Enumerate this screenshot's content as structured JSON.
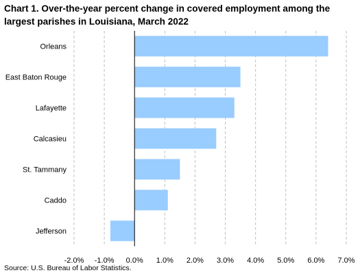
{
  "title": "Chart 1. Over-the-year percent change in covered employment among the largest parishes in Louisiana, March 2022",
  "source": "Source: U.S. Bureau of Labor Statistics.",
  "colors": {
    "bar": "#99ccff",
    "grid": "#bfbfbf",
    "axis": "#000000"
  },
  "chart_data": {
    "type": "bar",
    "orientation": "horizontal",
    "categories": [
      "Orleans",
      "East Baton Rouge",
      "Lafayette",
      "Calcasieu",
      "St. Tammany",
      "Caddo",
      "Jefferson"
    ],
    "values": [
      6.4,
      3.5,
      3.3,
      2.7,
      1.5,
      1.1,
      -0.8
    ],
    "xlim": [
      -2.0,
      7.0
    ],
    "ticks": [
      -2.0,
      -1.0,
      0.0,
      1.0,
      2.0,
      3.0,
      4.0,
      5.0,
      6.0,
      7.0
    ],
    "tick_labels": [
      "-2.0%",
      "-1.0%",
      "0.0%",
      "1.0%",
      "2.0%",
      "3.0%",
      "4.0%",
      "5.0%",
      "6.0%",
      "7.0%"
    ],
    "grid": "vertical dashed",
    "legend": "none"
  }
}
